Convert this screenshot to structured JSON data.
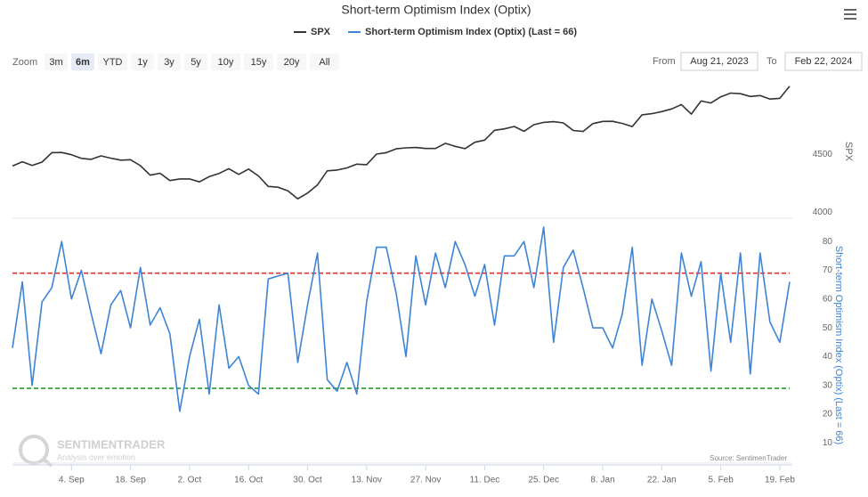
{
  "chart_data": [
    {
      "type": "line",
      "title": "Short-term Optimism Index (Optix)",
      "y_axis_title": "SPX",
      "series": [
        {
          "name": "SPX",
          "color": "#333333",
          "values": [
            4399,
            4436,
            4405,
            4433,
            4514,
            4516,
            4497,
            4465,
            4457,
            4487,
            4467,
            4450,
            4454,
            4402,
            4320,
            4337,
            4274,
            4288,
            4288,
            4263,
            4308,
            4336,
            4376,
            4327,
            4373,
            4314,
            4224,
            4217,
            4186,
            4117,
            4167,
            4237,
            4358,
            4365,
            4383,
            4415,
            4411,
            4502,
            4514,
            4547,
            4556,
            4559,
            4550,
            4550,
            4595,
            4569,
            4549,
            4604,
            4622,
            4707,
            4719,
            4740,
            4698,
            4755,
            4775,
            4781,
            4770,
            4705,
            4697,
            4764,
            4783,
            4784,
            4766,
            4739,
            4840,
            4850,
            4868,
            4891,
            4928,
            4846,
            4959,
            4942,
            4995,
            5027,
            5022,
            4998,
            5006,
            4976,
            4982,
            5087
          ]
        }
      ],
      "ylim": [
        3950,
        5100
      ],
      "yticks": [
        4000,
        4500
      ],
      "grid": false
    },
    {
      "type": "line",
      "y_axis_title": "Short-term Optimism Index (Optix) (Last = 66)",
      "categories": [
        null,
        null,
        null,
        null,
        null,
        null,
        "4. Sep",
        null,
        null,
        null,
        null,
        null,
        "18. Sep",
        null,
        null,
        null,
        null,
        null,
        "2. Oct",
        null,
        null,
        null,
        null,
        null,
        "16. Oct",
        null,
        null,
        null,
        null,
        null,
        "30. Oct",
        null,
        null,
        null,
        null,
        null,
        "13. Nov",
        null,
        null,
        null,
        null,
        null,
        "27. Nov",
        null,
        null,
        null,
        null,
        null,
        "11. Dec",
        null,
        null,
        null,
        null,
        null,
        "25. Dec",
        null,
        null,
        null,
        null,
        null,
        "8. Jan",
        null,
        null,
        null,
        null,
        null,
        "22. Jan",
        null,
        null,
        null,
        null,
        null,
        "5. Feb",
        null,
        null,
        null,
        null,
        null,
        "19. Feb",
        null
      ],
      "series": [
        {
          "name": "Short-term Optimism Index (Optix) (Last = 66)",
          "color": "#3d84d6",
          "values": [
            43,
            66,
            30,
            59,
            64,
            80,
            60,
            70,
            55,
            41,
            58,
            63,
            50,
            71,
            51,
            57,
            48,
            21,
            40,
            53,
            27,
            58,
            36,
            40,
            30,
            27,
            67,
            68,
            69,
            38,
            58,
            76,
            32,
            28,
            38,
            27,
            59,
            78,
            78,
            62,
            40,
            75,
            58,
            76,
            64,
            80,
            72,
            61,
            72,
            51,
            75,
            75,
            80,
            64,
            85,
            45,
            71,
            77,
            64,
            50,
            50,
            43,
            55,
            78,
            37,
            60,
            49,
            37,
            76,
            61,
            73,
            35,
            69,
            45,
            76,
            34,
            76,
            52,
            45,
            66
          ]
        }
      ],
      "reference_lines": [
        {
          "value": 69,
          "color": "#e03030"
        },
        {
          "value": 29,
          "color": "#2a9a2a"
        }
      ],
      "ylim": [
        3,
        85
      ],
      "yticks": [
        10,
        20,
        30,
        40,
        50,
        60,
        70,
        80
      ],
      "grid": false
    }
  ],
  "ui": {
    "zoom_label": "Zoom",
    "zoom_buttons": [
      "3m",
      "6m",
      "YTD",
      "1y",
      "3y",
      "5y",
      "10y",
      "15y",
      "20y",
      "All"
    ],
    "zoom_selected": 1,
    "from_label": "From",
    "from_value": "Aug 21, 2023",
    "to_label": "To",
    "to_value": "Feb 22, 2024",
    "credits": "Source: SentimenTrader",
    "watermark": "SENTIMENTRADER",
    "watermark_tagline": "Analysis over emotion"
  }
}
